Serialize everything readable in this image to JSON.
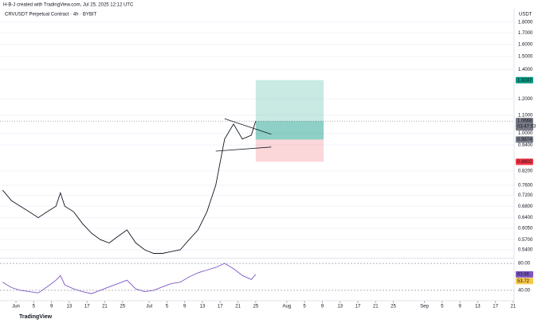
{
  "header": {
    "credit": "H-B-J created with TradingView.com, Jul 25, 2025 12:12 UTC",
    "symbol": "CRVUSDT Perpetual Contract · 4h · BYBIT"
  },
  "chart_data": [
    {
      "type": "line",
      "log_y": true,
      "unit": "USDT",
      "color": "#131722",
      "x": [
        -3,
        -1,
        1,
        3,
        5,
        7,
        9,
        10,
        11,
        13,
        15,
        17,
        19,
        21,
        23,
        25,
        27,
        29,
        31,
        33,
        35,
        37,
        39,
        41,
        43,
        45,
        47,
        49,
        51,
        53,
        54
      ],
      "values": [
        0.74,
        0.7,
        0.68,
        0.66,
        0.64,
        0.66,
        0.68,
        0.73,
        0.68,
        0.66,
        0.62,
        0.59,
        0.57,
        0.56,
        0.58,
        0.6,
        0.56,
        0.54,
        0.53,
        0.53,
        0.535,
        0.54,
        0.57,
        0.6,
        0.66,
        0.76,
        0.97,
        1.05,
        0.97,
        0.99,
        1.0668
      ],
      "xlim": [
        -3.6,
        112.2
      ],
      "xticks": [
        {
          "value": 0,
          "label": "Jun"
        },
        {
          "value": 4,
          "label": "5"
        },
        {
          "value": 8,
          "label": "9"
        },
        {
          "value": 12,
          "label": "13"
        },
        {
          "value": 16,
          "label": "17"
        },
        {
          "value": 20,
          "label": "21"
        },
        {
          "value": 24,
          "label": "25"
        },
        {
          "value": 30,
          "label": "Jul"
        },
        {
          "value": 34,
          "label": "5"
        },
        {
          "value": 38,
          "label": "9"
        },
        {
          "value": 42,
          "label": "13"
        },
        {
          "value": 46,
          "label": "17"
        },
        {
          "value": 50,
          "label": "21"
        },
        {
          "value": 54,
          "label": "25"
        },
        {
          "value": 61,
          "label": "Aug"
        },
        {
          "value": 65,
          "label": "5"
        },
        {
          "value": 69,
          "label": "9"
        },
        {
          "value": 73,
          "label": "13"
        },
        {
          "value": 77,
          "label": "17"
        },
        {
          "value": 81,
          "label": "21"
        },
        {
          "value": 85,
          "label": "25"
        },
        {
          "value": 92,
          "label": "Sep"
        },
        {
          "value": 96,
          "label": "5"
        },
        {
          "value": 100,
          "label": "9"
        },
        {
          "value": 104,
          "label": "13"
        },
        {
          "value": 108,
          "label": "17"
        },
        {
          "value": 112,
          "label": "21"
        }
      ],
      "ylim": [
        0.52,
        1.94
      ],
      "yticks": [
        {
          "value": 1.8,
          "label": "1.8000"
        },
        {
          "value": 1.7,
          "label": "1.7000"
        },
        {
          "value": 1.6,
          "label": "1.6000"
        },
        {
          "value": 1.5,
          "label": "1.5000"
        },
        {
          "value": 1.4,
          "label": "1.4000"
        },
        {
          "value": 1.2,
          "label": "1.2000"
        },
        {
          "value": 1.1,
          "label": "1.1000"
        },
        {
          "value": 1.0,
          "label": "1.0000"
        },
        {
          "value": 0.94,
          "label": "0.9400"
        },
        {
          "value": 0.82,
          "label": "0.8200"
        },
        {
          "value": 0.76,
          "label": "0.7600"
        },
        {
          "value": 0.72,
          "label": "0.7200"
        },
        {
          "value": 0.68,
          "label": "0.6800"
        },
        {
          "value": 0.64,
          "label": "0.6400"
        },
        {
          "value": 0.605,
          "label": "0.6050"
        },
        {
          "value": 0.57,
          "label": "0.5700"
        },
        {
          "value": 0.54,
          "label": "0.5400"
        }
      ],
      "price_labels": [
        {
          "value": 1.3247,
          "color": "#089981"
        },
        {
          "value": 1.0668,
          "color": "#787b86"
        },
        {
          "value": 0.9674,
          "color": "#787b86"
        },
        {
          "value": 0.8602,
          "color": "#f23645"
        }
      ],
      "countdown": "03:47:53",
      "position": {
        "start": 54,
        "end": 69.3,
        "entry": 0.9674,
        "target": 1.3247,
        "stop": 0.8602
      },
      "trendlines": [
        {
          "x": [
            47,
            57.5
          ],
          "y": [
            1.08,
            0.995
          ]
        },
        {
          "x": [
            45,
            57.5
          ],
          "y": [
            0.91,
            0.93
          ]
        }
      ]
    },
    {
      "type": "line",
      "color": "#7e57c2",
      "x": [
        -3,
        -1,
        1,
        3,
        5,
        7,
        9,
        10,
        11,
        13,
        15,
        17,
        19,
        21,
        23,
        25,
        27,
        29,
        31,
        33,
        35,
        37,
        39,
        41,
        43,
        45,
        47,
        49,
        51,
        53,
        54
      ],
      "values": [
        52,
        44,
        40,
        38,
        36,
        45,
        55,
        62,
        48,
        42,
        38,
        35,
        40,
        45,
        50,
        55,
        42,
        38,
        40,
        45,
        50,
        52,
        60,
        66,
        70,
        74,
        80,
        72,
        62,
        56,
        63.66
      ],
      "xlim": [
        -3.6,
        112.2
      ],
      "ylim": [
        28,
        86
      ],
      "yticks": [
        {
          "value": 80,
          "label": "80.00"
        },
        {
          "value": 40,
          "label": "40.00"
        }
      ],
      "price_labels": [
        {
          "value": 63.66,
          "color": "#7e57c2"
        },
        {
          "value": 53.72,
          "color": "#f7c948"
        }
      ]
    }
  ],
  "footer": "TradingView"
}
